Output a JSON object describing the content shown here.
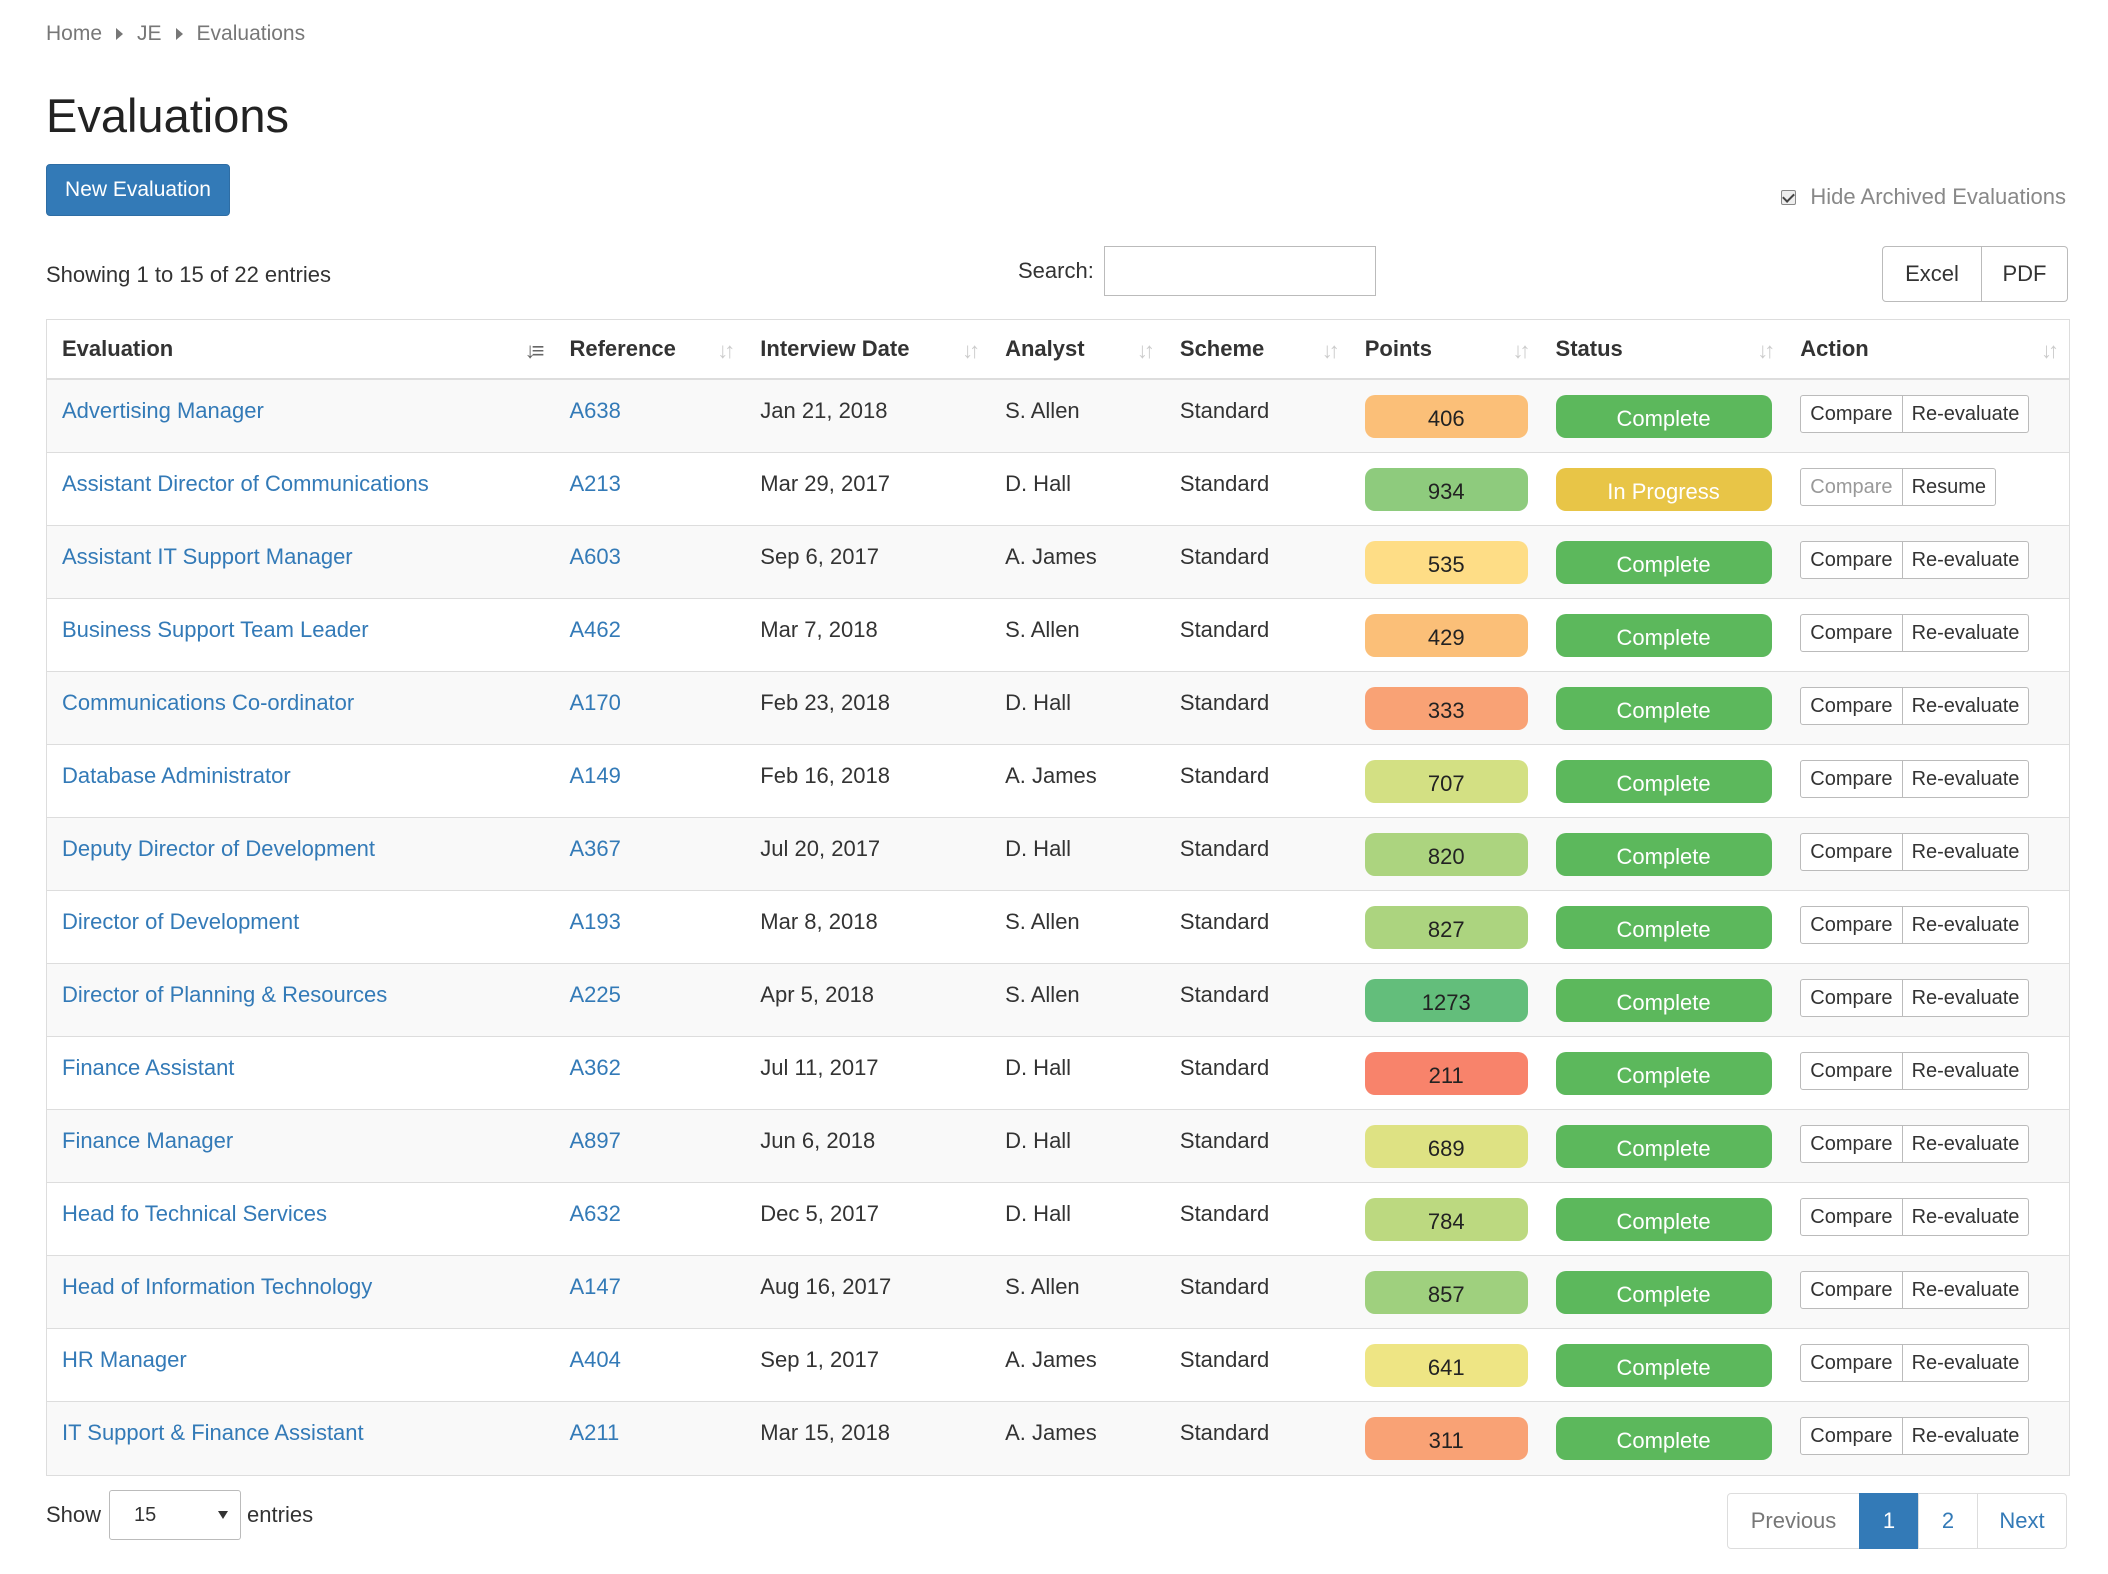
{
  "breadcrumb": [
    "Home",
    "JE",
    "Evaluations"
  ],
  "page_title": "Evaluations",
  "new_button": "New Evaluation",
  "hide_archived": {
    "label": "Hide Archived Evaluations",
    "checked": true
  },
  "showing": "Showing 1 to 15 of 22 entries",
  "search": {
    "label": "Search:",
    "value": ""
  },
  "export": {
    "excel": "Excel",
    "pdf": "PDF"
  },
  "columns": [
    "Evaluation",
    "Reference",
    "Interview Date",
    "Analyst",
    "Scheme",
    "Points",
    "Status",
    "Action"
  ],
  "sorted_column": "Evaluation",
  "status_colors": {
    "Complete": "#5cb85c",
    "In Progress": "#e8c547"
  },
  "rows": [
    {
      "evaluation": "Advertising Manager",
      "reference": "A638",
      "date": "Jan 21, 2018",
      "analyst": "S. Allen",
      "scheme": "Standard",
      "points": "406",
      "points_color": "#fbbf78",
      "status": "Complete",
      "action1": "Compare",
      "action2": "Re-evaluate",
      "action1_disabled": false
    },
    {
      "evaluation": "Assistant Director of Communications",
      "reference": "A213",
      "date": "Mar 29, 2017",
      "analyst": "D. Hall",
      "scheme": "Standard",
      "points": "934",
      "points_color": "#8ecb7d",
      "status": "In Progress",
      "action1": "Compare",
      "action2": "Resume",
      "action1_disabled": true
    },
    {
      "evaluation": "Assistant IT Support Manager",
      "reference": "A603",
      "date": "Sep 6, 2017",
      "analyst": "A. James",
      "scheme": "Standard",
      "points": "535",
      "points_color": "#fedd86",
      "status": "Complete",
      "action1": "Compare",
      "action2": "Re-evaluate",
      "action1_disabled": false
    },
    {
      "evaluation": "Business Support Team Leader",
      "reference": "A462",
      "date": "Mar 7, 2018",
      "analyst": "S. Allen",
      "scheme": "Standard",
      "points": "429",
      "points_color": "#fbbf78",
      "status": "Complete",
      "action1": "Compare",
      "action2": "Re-evaluate",
      "action1_disabled": false
    },
    {
      "evaluation": "Communications Co-ordinator",
      "reference": "A170",
      "date": "Feb 23, 2018",
      "analyst": "D. Hall",
      "scheme": "Standard",
      "points": "333",
      "points_color": "#f9a275",
      "status": "Complete",
      "action1": "Compare",
      "action2": "Re-evaluate",
      "action1_disabled": false
    },
    {
      "evaluation": "Database Administrator",
      "reference": "A149",
      "date": "Feb 16, 2018",
      "analyst": "A. James",
      "scheme": "Standard",
      "points": "707",
      "points_color": "#d3e083",
      "status": "Complete",
      "action1": "Compare",
      "action2": "Re-evaluate",
      "action1_disabled": false
    },
    {
      "evaluation": "Deputy Director of Development",
      "reference": "A367",
      "date": "Jul 20, 2017",
      "analyst": "D. Hall",
      "scheme": "Standard",
      "points": "820",
      "points_color": "#acd47f",
      "status": "Complete",
      "action1": "Compare",
      "action2": "Re-evaluate",
      "action1_disabled": false
    },
    {
      "evaluation": "Director of Development",
      "reference": "A193",
      "date": "Mar 8, 2018",
      "analyst": "S. Allen",
      "scheme": "Standard",
      "points": "827",
      "points_color": "#acd47f",
      "status": "Complete",
      "action1": "Compare",
      "action2": "Re-evaluate",
      "action1_disabled": false
    },
    {
      "evaluation": "Director of Planning & Resources",
      "reference": "A225",
      "date": "Apr 5, 2018",
      "analyst": "S. Allen",
      "scheme": "Standard",
      "points": "1273",
      "points_color": "#63be7b",
      "status": "Complete",
      "action1": "Compare",
      "action2": "Re-evaluate",
      "action1_disabled": false
    },
    {
      "evaluation": "Finance Assistant",
      "reference": "A362",
      "date": "Jul 11, 2017",
      "analyst": "D. Hall",
      "scheme": "Standard",
      "points": "211",
      "points_color": "#f8836b",
      "status": "Complete",
      "action1": "Compare",
      "action2": "Re-evaluate",
      "action1_disabled": false
    },
    {
      "evaluation": "Finance Manager",
      "reference": "A897",
      "date": "Jun 6, 2018",
      "analyst": "D. Hall",
      "scheme": "Standard",
      "points": "689",
      "points_color": "#dee283",
      "status": "Complete",
      "action1": "Compare",
      "action2": "Re-evaluate",
      "action1_disabled": false
    },
    {
      "evaluation": "Head fo Technical Services",
      "reference": "A632",
      "date": "Dec 5, 2017",
      "analyst": "D. Hall",
      "scheme": "Standard",
      "points": "784",
      "points_color": "#bcd980",
      "status": "Complete",
      "action1": "Compare",
      "action2": "Re-evaluate",
      "action1_disabled": false
    },
    {
      "evaluation": "Head of Information Technology",
      "reference": "A147",
      "date": "Aug 16, 2017",
      "analyst": "S. Allen",
      "scheme": "Standard",
      "points": "857",
      "points_color": "#9fd07e",
      "status": "Complete",
      "action1": "Compare",
      "action2": "Re-evaluate",
      "action1_disabled": false
    },
    {
      "evaluation": "HR Manager",
      "reference": "A404",
      "date": "Sep 1, 2017",
      "analyst": "A. James",
      "scheme": "Standard",
      "points": "641",
      "points_color": "#eee584",
      "status": "Complete",
      "action1": "Compare",
      "action2": "Re-evaluate",
      "action1_disabled": false
    },
    {
      "evaluation": "IT Support & Finance Assistant",
      "reference": "A211",
      "date": "Mar 15, 2018",
      "analyst": "A. James",
      "scheme": "Standard",
      "points": "311",
      "points_color": "#f9a275",
      "status": "Complete",
      "action1": "Compare",
      "action2": "Re-evaluate",
      "action1_disabled": false
    }
  ],
  "length_menu": {
    "label_before": "Show",
    "value": "15",
    "label_after": "entries"
  },
  "pagination": {
    "previous": "Previous",
    "pages": [
      "1",
      "2"
    ],
    "current": "1",
    "next": "Next"
  }
}
